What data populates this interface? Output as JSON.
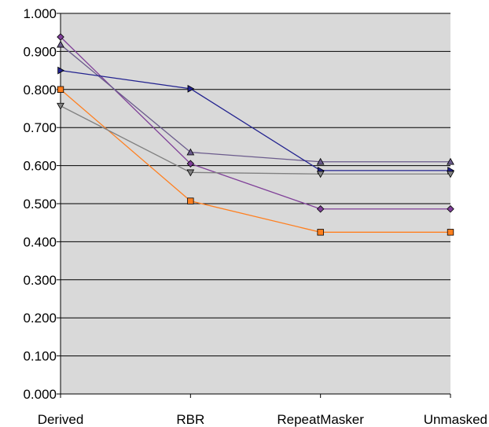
{
  "chart_data": {
    "type": "line",
    "title": "",
    "xlabel": "",
    "ylabel": "",
    "categories": [
      "Derived",
      "RBR",
      "RepeatMasker",
      "Unmasked"
    ],
    "ylim": [
      0,
      1
    ],
    "yticks": [
      "0.000",
      "0.100",
      "0.200",
      "0.300",
      "0.400",
      "0.500",
      "0.600",
      "0.700",
      "0.800",
      "0.900",
      "1.000"
    ],
    "grid": true,
    "legend": "none",
    "plot_background": "#d9d9d9",
    "series": [
      {
        "color": "#7f3f98",
        "marker": "diamond",
        "values": [
          0.938,
          0.605,
          0.486,
          0.486
        ]
      },
      {
        "color": "#6b5b8c",
        "marker": "triangle-up",
        "values": [
          0.918,
          0.635,
          0.61,
          0.61
        ]
      },
      {
        "color": "#22228f",
        "marker": "triangle-right",
        "values": [
          0.85,
          0.802,
          0.587,
          0.587
        ]
      },
      {
        "color": "#ff7f1f",
        "marker": "square",
        "values": [
          0.8,
          0.507,
          0.425,
          0.425
        ]
      },
      {
        "color": "#808080",
        "marker": "triangle-down",
        "values": [
          0.757,
          0.582,
          0.578,
          0.578
        ]
      }
    ]
  }
}
